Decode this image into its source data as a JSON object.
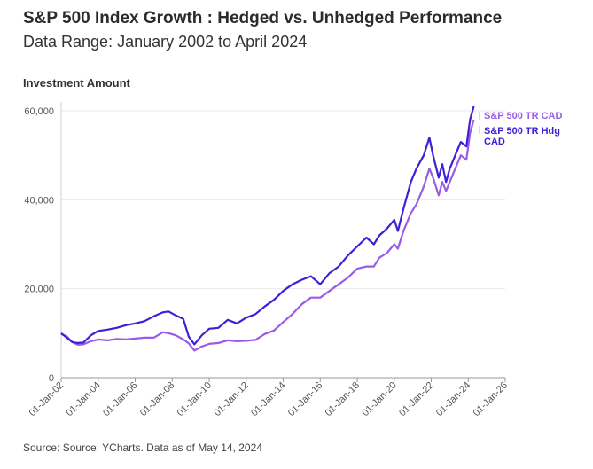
{
  "header": {
    "title": "S&P 500 Index Growth : Hedged vs. Unhedged Performance",
    "subtitle": "Data Range: January 2002 to April 2024"
  },
  "footer": {
    "source": "Source: Source: YCharts. Data as of May 14, 2024"
  },
  "colors": {
    "unhedged": "#9a5ce6",
    "hedged": "#3f20d6",
    "grid": "#e8e8e8",
    "axis": "#999999"
  },
  "chart_data": {
    "type": "line",
    "title": "S&P 500 Index Growth : Hedged vs. Unhedged Performance",
    "subtitle": "Data Range: January 2002 to April 2024",
    "ylabel": "Investment Amount",
    "xlabel": "",
    "xlim": [
      2002,
      2026
    ],
    "ylim": [
      0,
      62000
    ],
    "yticks": [
      0,
      20000,
      40000,
      60000
    ],
    "ytick_labels": [
      "0",
      "20,000",
      "40,000",
      "60,000"
    ],
    "xticks": [
      2002,
      2004,
      2006,
      2008,
      2010,
      2012,
      2014,
      2016,
      2018,
      2020,
      2022,
      2024,
      2026
    ],
    "xtick_labels": [
      "01-Jan-02",
      "01-Jan-04",
      "01-Jan-06",
      "01-Jan-08",
      "01-Jan-10",
      "01-Jan-12",
      "01-Jan-14",
      "01-Jan-16",
      "01-Jan-18",
      "01-Jan-20",
      "01-Jan-22",
      "01-Jan-24",
      "01-Jan-26"
    ],
    "grid": true,
    "legend_placement": "right end of lines",
    "series": [
      {
        "name": "S&P 500 TR CAD",
        "color": "#9a5ce6",
        "x": [
          2002.0,
          2002.3,
          2002.6,
          2002.9,
          2003.2,
          2003.6,
          2004.0,
          2004.5,
          2005.0,
          2005.5,
          2006.0,
          2006.5,
          2007.0,
          2007.5,
          2007.8,
          2008.2,
          2008.6,
          2008.9,
          2009.2,
          2009.6,
          2010.0,
          2010.5,
          2011.0,
          2011.5,
          2012.0,
          2012.5,
          2013.0,
          2013.5,
          2014.0,
          2014.5,
          2015.0,
          2015.5,
          2016.0,
          2016.5,
          2017.0,
          2017.5,
          2018.0,
          2018.5,
          2018.9,
          2019.2,
          2019.6,
          2020.0,
          2020.2,
          2020.5,
          2020.9,
          2021.2,
          2021.6,
          2021.9,
          2022.1,
          2022.4,
          2022.6,
          2022.8,
          2023.0,
          2023.3,
          2023.6,
          2023.9,
          2024.1,
          2024.3
        ],
        "y": [
          9800,
          9300,
          8000,
          7400,
          7500,
          8200,
          8600,
          8400,
          8700,
          8600,
          8800,
          9000,
          9000,
          10200,
          10000,
          9500,
          8600,
          7700,
          6100,
          7000,
          7600,
          7800,
          8400,
          8200,
          8300,
          8500,
          9800,
          10600,
          12500,
          14300,
          16500,
          18000,
          18000,
          19500,
          21000,
          22500,
          24500,
          25000,
          25000,
          27000,
          28000,
          30000,
          29000,
          33000,
          37000,
          39000,
          43000,
          47000,
          45000,
          41000,
          44000,
          42000,
          44000,
          47000,
          50000,
          49000,
          55000,
          58000
        ]
      },
      {
        "name": "S&P 500 TR Hdg CAD",
        "color": "#3f20d6",
        "x": [
          2002.0,
          2002.3,
          2002.6,
          2002.9,
          2003.2,
          2003.6,
          2004.0,
          2004.5,
          2005.0,
          2005.5,
          2006.0,
          2006.5,
          2007.0,
          2007.5,
          2007.8,
          2008.2,
          2008.6,
          2008.9,
          2009.2,
          2009.6,
          2010.0,
          2010.5,
          2011.0,
          2011.5,
          2012.0,
          2012.5,
          2013.0,
          2013.5,
          2014.0,
          2014.5,
          2015.0,
          2015.5,
          2016.0,
          2016.5,
          2017.0,
          2017.5,
          2018.0,
          2018.5,
          2018.9,
          2019.2,
          2019.6,
          2020.0,
          2020.2,
          2020.5,
          2020.9,
          2021.2,
          2021.6,
          2021.9,
          2022.1,
          2022.4,
          2022.6,
          2022.8,
          2023.0,
          2023.3,
          2023.6,
          2023.9,
          2024.1,
          2024.3
        ],
        "y": [
          10000,
          9000,
          8000,
          7800,
          7900,
          9500,
          10500,
          10800,
          11200,
          11800,
          12200,
          12700,
          13800,
          14700,
          14900,
          14000,
          13200,
          9200,
          7500,
          9500,
          11000,
          11200,
          13000,
          12200,
          13500,
          14300,
          16000,
          17500,
          19500,
          21000,
          22000,
          22800,
          21000,
          23500,
          25000,
          27500,
          29500,
          31500,
          30000,
          32000,
          33500,
          35500,
          33000,
          38000,
          44000,
          47000,
          50000,
          54000,
          50000,
          45000,
          48000,
          44000,
          47000,
          50000,
          53000,
          52000,
          58000,
          61000
        ]
      }
    ]
  }
}
